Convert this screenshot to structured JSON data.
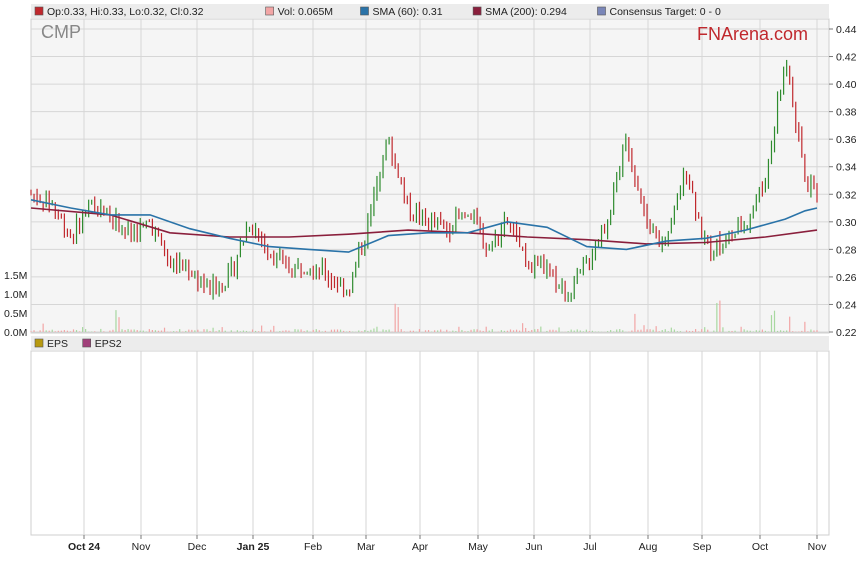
{
  "legend": [
    {
      "label": "Op:0.33, Hi:0.33, Lo:0.32, Cl:0.32",
      "color": "#c0282d"
    },
    {
      "label": "Vol: 0.065M",
      "color": "#f2a5a5"
    },
    {
      "label": "SMA (60): 0.31",
      "color": "#2a73a8"
    },
    {
      "label": "SMA (200): 0.294",
      "color": "#8a1f3c"
    },
    {
      "label": "Consensus Target: 0 - 0",
      "color": "#7a86b8"
    }
  ],
  "eps_legend": [
    {
      "label": "EPS",
      "color": "#b89a10"
    },
    {
      "label": "EPS2",
      "color": "#a0407a"
    }
  ],
  "ticker": "CMP",
  "brand": "FNArena.com",
  "colors": {
    "up": "#2e8b2e",
    "down": "#c0282d",
    "sma60": "#2a73a8",
    "sma200": "#8a1f3c",
    "grid": "#d6d6d6",
    "panel": "#f5f5f5"
  },
  "chart_data": {
    "type": "candlestick",
    "price_axis": {
      "ticks": [
        "0.44",
        "0.42",
        "0.40",
        "0.38",
        "0.36",
        "0.34",
        "0.32",
        "0.30",
        "0.28",
        "0.26",
        "0.24",
        "0.22"
      ],
      "range": [
        0.22,
        0.445
      ]
    },
    "volume_axis": {
      "ticks": [
        "1.5M",
        "1.0M",
        "0.5M",
        "0.0M"
      ],
      "range": [
        0,
        1.8
      ]
    },
    "x_labels": [
      "Oct 24",
      "Nov",
      "Dec",
      "Jan 25",
      "Feb",
      "Mar",
      "Apr",
      "May",
      "Jun",
      "Jul",
      "Aug",
      "Sep",
      "Oct",
      "Nov"
    ],
    "price_path": [
      {
        "x": 0,
        "y": 0.32
      },
      {
        "x": 0.5,
        "y": 0.315
      },
      {
        "x": 1,
        "y": 0.29
      },
      {
        "x": 1.5,
        "y": 0.31
      },
      {
        "x": 2,
        "y": 0.305
      },
      {
        "x": 2.5,
        "y": 0.29
      },
      {
        "x": 3,
        "y": 0.3
      },
      {
        "x": 3.5,
        "y": 0.27
      },
      {
        "x": 4,
        "y": 0.265
      },
      {
        "x": 4.5,
        "y": 0.25
      },
      {
        "x": 5,
        "y": 0.26
      },
      {
        "x": 5.5,
        "y": 0.3
      },
      {
        "x": 6,
        "y": 0.28
      },
      {
        "x": 6.5,
        "y": 0.265
      },
      {
        "x": 7,
        "y": 0.27
      },
      {
        "x": 7.5,
        "y": 0.26
      },
      {
        "x": 8,
        "y": 0.25
      },
      {
        "x": 8.5,
        "y": 0.3
      },
      {
        "x": 9,
        "y": 0.36
      },
      {
        "x": 9.5,
        "y": 0.31
      },
      {
        "x": 10,
        "y": 0.3
      },
      {
        "x": 10.5,
        "y": 0.295
      },
      {
        "x": 11,
        "y": 0.31
      },
      {
        "x": 11.5,
        "y": 0.28
      },
      {
        "x": 12,
        "y": 0.3
      },
      {
        "x": 12.5,
        "y": 0.27
      },
      {
        "x": 13,
        "y": 0.265
      },
      {
        "x": 13.5,
        "y": 0.245
      },
      {
        "x": 14,
        "y": 0.27
      },
      {
        "x": 14.5,
        "y": 0.3
      },
      {
        "x": 15,
        "y": 0.36
      },
      {
        "x": 15.5,
        "y": 0.3
      },
      {
        "x": 16,
        "y": 0.28
      },
      {
        "x": 16.5,
        "y": 0.34
      },
      {
        "x": 17,
        "y": 0.28
      },
      {
        "x": 17.5,
        "y": 0.285
      },
      {
        "x": 18,
        "y": 0.3
      },
      {
        "x": 18.5,
        "y": 0.33
      },
      {
        "x": 19,
        "y": 0.42
      },
      {
        "x": 19.5,
        "y": 0.33
      },
      {
        "x": 19.8,
        "y": 0.32
      }
    ],
    "sma60": [
      {
        "x": 0,
        "y": 0.316
      },
      {
        "x": 1,
        "y": 0.31
      },
      {
        "x": 2,
        "y": 0.305
      },
      {
        "x": 3,
        "y": 0.305
      },
      {
        "x": 4,
        "y": 0.295
      },
      {
        "x": 5,
        "y": 0.288
      },
      {
        "x": 6,
        "y": 0.282
      },
      {
        "x": 7,
        "y": 0.28
      },
      {
        "x": 8,
        "y": 0.278
      },
      {
        "x": 9,
        "y": 0.29
      },
      {
        "x": 10,
        "y": 0.292
      },
      {
        "x": 11,
        "y": 0.292
      },
      {
        "x": 12,
        "y": 0.3
      },
      {
        "x": 13,
        "y": 0.296
      },
      {
        "x": 14,
        "y": 0.282
      },
      {
        "x": 15,
        "y": 0.28
      },
      {
        "x": 16,
        "y": 0.286
      },
      {
        "x": 17,
        "y": 0.288
      },
      {
        "x": 18,
        "y": 0.294
      },
      {
        "x": 19,
        "y": 0.302
      },
      {
        "x": 19.5,
        "y": 0.308
      },
      {
        "x": 19.8,
        "y": 0.31
      }
    ],
    "sma200": [
      {
        "x": 0,
        "y": 0.31
      },
      {
        "x": 2,
        "y": 0.305
      },
      {
        "x": 3.5,
        "y": 0.292
      },
      {
        "x": 5,
        "y": 0.289
      },
      {
        "x": 6.5,
        "y": 0.289
      },
      {
        "x": 8,
        "y": 0.291
      },
      {
        "x": 9.5,
        "y": 0.294
      },
      {
        "x": 11,
        "y": 0.292
      },
      {
        "x": 12.5,
        "y": 0.289
      },
      {
        "x": 14,
        "y": 0.287
      },
      {
        "x": 15.5,
        "y": 0.284
      },
      {
        "x": 17,
        "y": 0.285
      },
      {
        "x": 18.5,
        "y": 0.289
      },
      {
        "x": 19.8,
        "y": 0.294
      }
    ],
    "volume_spikes": [
      {
        "x": 0.3,
        "v": 0.3
      },
      {
        "x": 2.2,
        "v": 0.55
      },
      {
        "x": 5.8,
        "v": 0.2
      },
      {
        "x": 9.2,
        "v": 0.8
      },
      {
        "x": 12.4,
        "v": 0.25
      },
      {
        "x": 15.2,
        "v": 0.45
      },
      {
        "x": 17.3,
        "v": 0.9
      },
      {
        "x": 18.7,
        "v": 0.6
      },
      {
        "x": 19.1,
        "v": 0.55
      },
      {
        "x": 19.5,
        "v": 0.3
      }
    ]
  }
}
